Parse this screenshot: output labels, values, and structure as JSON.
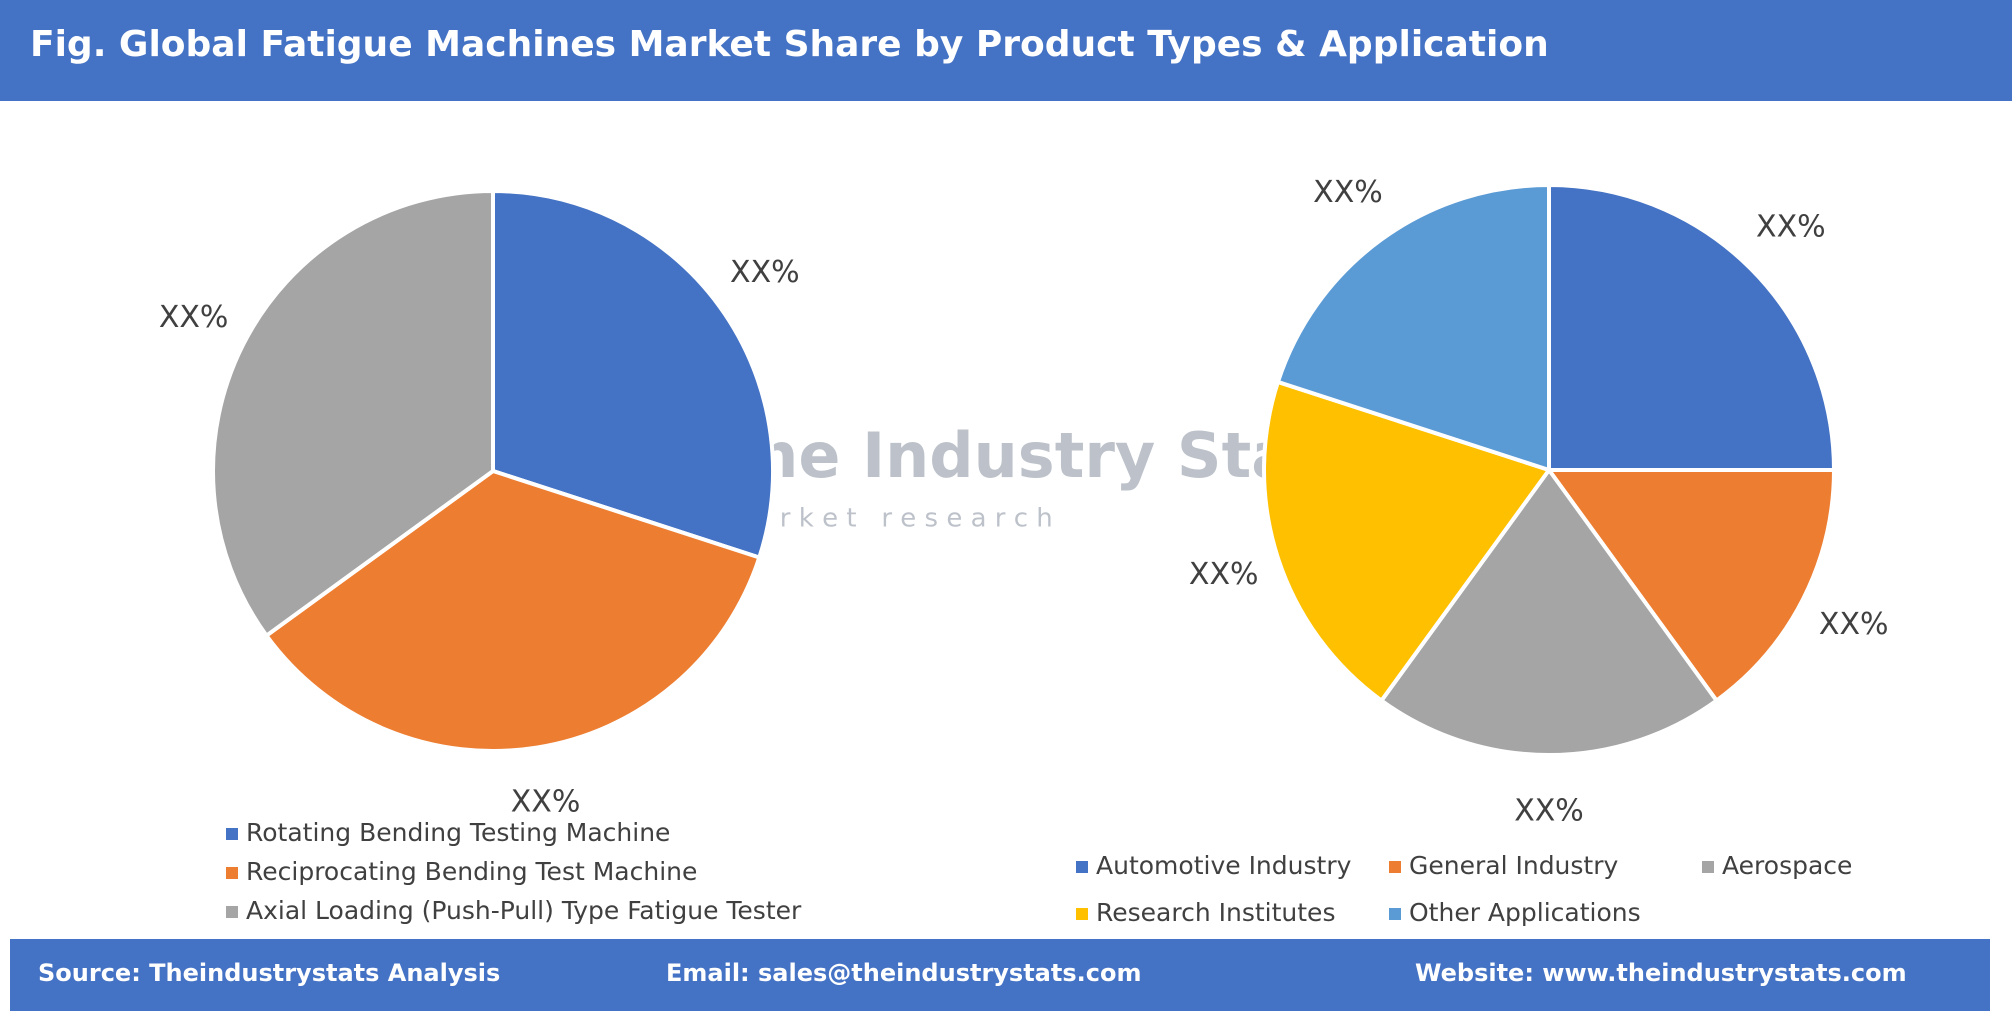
{
  "title": "Fig. Global Fatigue Machines Market Share by Product Types & Application",
  "watermark": {
    "name": "The Industry Stats",
    "tagline": "m a r k e t   r e s e a r c h"
  },
  "chart_data": [
    {
      "type": "pie",
      "categories": [
        "Rotating Bending Testing Machine",
        "Reciprocating Bending Test Machine",
        "Axial Loading (Push-Pull) Type Fatigue Tester"
      ],
      "values": [
        30,
        35,
        35
      ],
      "value_labels": [
        "XX%",
        "XX%",
        "XX%"
      ],
      "colors": [
        "#4472c4",
        "#ed7d31",
        "#a5a5a5"
      ],
      "legend": "bottom"
    },
    {
      "type": "pie",
      "categories": [
        "Automotive Industry",
        "General Industry",
        "Aerospace",
        "Research Institutes",
        "Other Applications"
      ],
      "values": [
        25,
        15,
        20,
        20,
        20
      ],
      "value_labels": [
        "XX%",
        "XX%",
        "XX%",
        "XX%",
        "XX%"
      ],
      "colors": [
        "#4472c4",
        "#ed7d31",
        "#a5a5a5",
        "#ffc000",
        "#5b9bd5"
      ],
      "legend": "bottom"
    }
  ],
  "footer": {
    "source": "Source: Theindustrystats Analysis",
    "email": "Email: sales@theindustrystats.com",
    "website": "Website: www.theindustrystats.com"
  }
}
